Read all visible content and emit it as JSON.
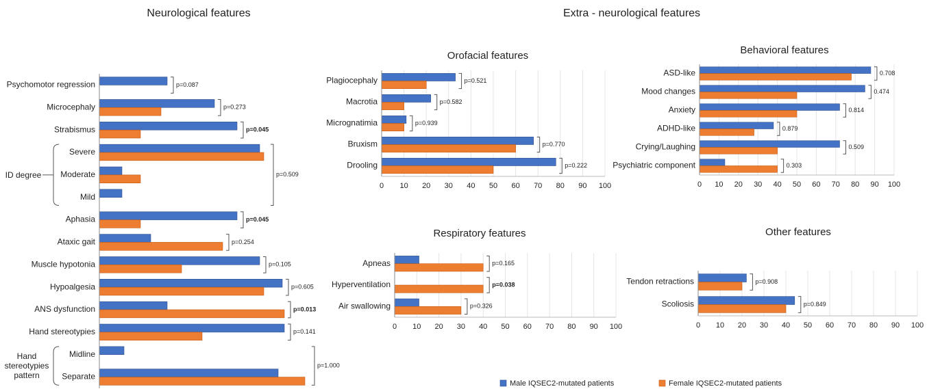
{
  "headings": [
    "Neurological features",
    "Extra - neurological features"
  ],
  "chart_data": [
    {
      "type": "bar",
      "orientation": "horizontal",
      "categories": [
        "Psychomotor regression",
        "Microcephaly",
        "Strabismus",
        "Severe",
        "Moderate",
        "Mild",
        "Aphasia",
        "Ataxic gait",
        "Muscle hypotonia",
        "Hypoalgesia",
        "ANS dysfunction",
        "Hand stereotypies",
        "Midline",
        "Separate"
      ],
      "series": [
        {
          "name": "Male IQSEC2-mutated patients",
          "color": "#4472c4",
          "values": [
            33,
            56,
            67,
            78,
            11,
            11,
            67,
            25,
            78,
            89,
            33,
            90,
            12,
            87
          ]
        },
        {
          "name": "Female IQSEC2-mutated patients",
          "color": "#ed7d31",
          "values": [
            0,
            30,
            20,
            80,
            20,
            0,
            20,
            60,
            40,
            80,
            90,
            50,
            0,
            100
          ]
        }
      ],
      "xlim": [
        0,
        100
      ],
      "p_values": [
        "p=0.087",
        "p=0.273",
        "p=0.045",
        null,
        null,
        null,
        "p=0.045",
        "p=0.254",
        "p=0.105",
        "p=0.605",
        "p=0.013",
        "p=0.141",
        null,
        null
      ],
      "p_bold": [
        false,
        false,
        true,
        false,
        false,
        false,
        true,
        false,
        false,
        false,
        true,
        false,
        false,
        false
      ],
      "groups": [
        {
          "label": "ID degree",
          "members": [
            "Severe",
            "Moderate",
            "Mild"
          ],
          "p_value": "p=0.509"
        },
        {
          "label": "Hand stereotypies pattern",
          "members": [
            "Midline",
            "Separate"
          ],
          "p_value": "p=1.000"
        }
      ]
    },
    {
      "type": "bar",
      "orientation": "horizontal",
      "title": "Orofacial features",
      "categories": [
        "Plagiocephaly",
        "Macrotia",
        "Micrognatimia",
        "Bruxism",
        "Drooling"
      ],
      "series": [
        {
          "color": "#4472c4",
          "values": [
            33,
            22,
            11,
            68,
            78
          ]
        },
        {
          "color": "#ed7d31",
          "values": [
            20,
            10,
            10,
            60,
            50
          ]
        }
      ],
      "xlim": [
        0,
        100
      ],
      "xticks": [
        0,
        10,
        20,
        30,
        40,
        50,
        60,
        70,
        80,
        90,
        100
      ],
      "grid": true,
      "p_values": [
        "p=0.521",
        "p=0.582",
        "p=0.939",
        "p=0.770",
        "p=0.222"
      ],
      "p_bold": [
        false,
        false,
        false,
        false,
        false
      ]
    },
    {
      "type": "bar",
      "orientation": "horizontal",
      "title": "Behavioral features",
      "categories": [
        "ASD-like",
        "Mood changes",
        "Anxiety",
        "ADHD-like",
        "Crying/Laughing",
        "Psychiatric component"
      ],
      "series": [
        {
          "color": "#4472c4",
          "values": [
            88,
            85,
            72,
            38,
            72,
            13
          ]
        },
        {
          "color": "#ed7d31",
          "values": [
            78,
            50,
            50,
            28,
            40,
            40
          ]
        }
      ],
      "xlim": [
        0,
        100
      ],
      "xticks": [
        0,
        10,
        20,
        30,
        40,
        50,
        60,
        70,
        80,
        90,
        100
      ],
      "grid": true,
      "p_values": [
        "0.708",
        "0.474",
        "0.814",
        "0.879",
        "0.509",
        "0.303"
      ],
      "p_bold": [
        false,
        false,
        false,
        false,
        false,
        false
      ]
    },
    {
      "type": "bar",
      "orientation": "horizontal",
      "title": "Respiratory features",
      "categories": [
        "Apneas",
        "Hyperventilation",
        "Air swallowing"
      ],
      "series": [
        {
          "color": "#4472c4",
          "values": [
            11,
            0,
            11
          ]
        },
        {
          "color": "#ed7d31",
          "values": [
            40,
            40,
            30
          ]
        }
      ],
      "xlim": [
        0,
        100
      ],
      "xticks": [
        0,
        10,
        20,
        30,
        40,
        50,
        60,
        70,
        80,
        90,
        100
      ],
      "grid": true,
      "p_values": [
        "p=0.165",
        "p=0.038",
        "p=0.326"
      ],
      "p_bold": [
        false,
        true,
        false
      ]
    },
    {
      "type": "bar",
      "orientation": "horizontal",
      "title": "Other features",
      "categories": [
        "Tendon retractions",
        "Scoliosis"
      ],
      "series": [
        {
          "color": "#4472c4",
          "values": [
            22,
            44
          ]
        },
        {
          "color": "#ed7d31",
          "values": [
            20,
            40
          ]
        }
      ],
      "xlim": [
        0,
        100
      ],
      "xticks": [
        0,
        10,
        20,
        30,
        40,
        50,
        60,
        70,
        80,
        90,
        100
      ],
      "grid": true,
      "p_values": [
        "p=0.908",
        "p=0.849"
      ],
      "p_bold": [
        false,
        false
      ]
    }
  ]
}
